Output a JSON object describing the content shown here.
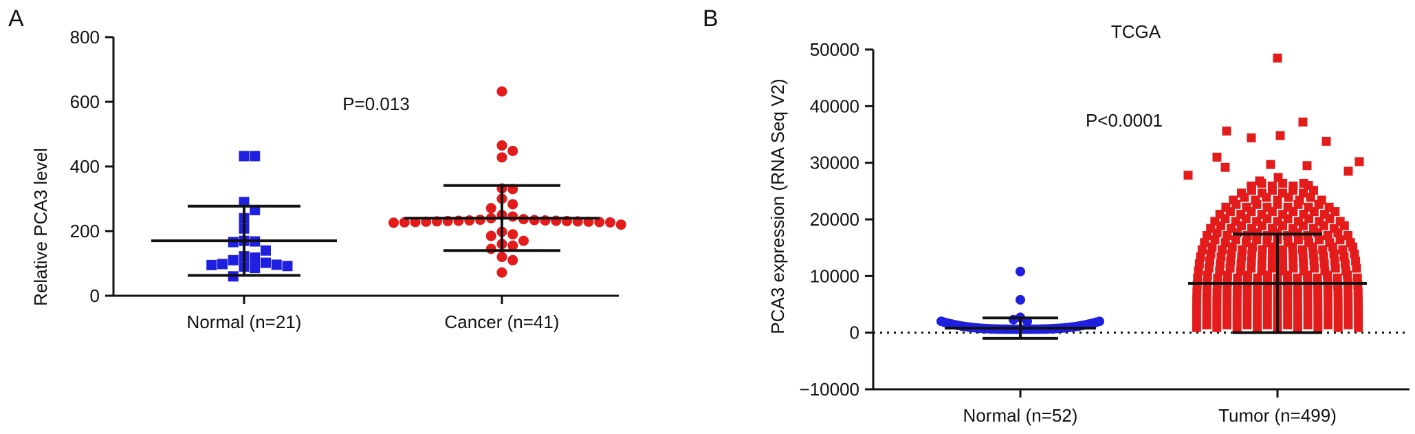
{
  "chart_data": [
    {
      "panel_label": "A",
      "type": "scatter",
      "ylabel": "Relative PCA3 level",
      "ylim": [
        0,
        800
      ],
      "yticks": [
        "0",
        "200",
        "400",
        "600",
        "800"
      ],
      "categories": [
        "Normal (n=21)",
        "Cancer (n=41)"
      ],
      "annotation": "P=0.013",
      "colors": {
        "Normal (n=21)": "#1f1fe0",
        "Cancer (n=41)": "#e31b1b"
      },
      "markers": {
        "Normal (n=21)": "square",
        "Cancer (n=41)": "circle"
      },
      "groups": [
        {
          "category": "Normal (n=21)",
          "mean": 170,
          "sd_upper": 277,
          "sd_lower": 63,
          "values": [
            432,
            432,
            290,
            265,
            240,
            208,
            170,
            168,
            166,
            140,
            122,
            118,
            110,
            102,
            98,
            96,
            95,
            92,
            90,
            86,
            60
          ]
        },
        {
          "category": "Cancer (n=41)",
          "mean": 240,
          "sd_upper": 341,
          "sd_lower": 140,
          "values": [
            632,
            465,
            448,
            428,
            332,
            330,
            300,
            283,
            271,
            250,
            245,
            240,
            237,
            235,
            234,
            233,
            233,
            232,
            232,
            231,
            231,
            230,
            230,
            229,
            229,
            228,
            228,
            227,
            227,
            226,
            220,
            198,
            190,
            185,
            170,
            160,
            155,
            145,
            120,
            110,
            72
          ]
        }
      ]
    },
    {
      "panel_label": "B",
      "type": "scatter",
      "title": "TCGA",
      "ylabel": "PCA3 expression (RNA Seq V2)",
      "ylim": [
        -10000,
        50000
      ],
      "yticks": [
        "-10000",
        "0",
        "10000",
        "20000",
        "30000",
        "40000",
        "50000"
      ],
      "categories": [
        "Normal (n=52)",
        "Tumor (n=499)"
      ],
      "annotation": "P<0.0001",
      "reference_line": 0,
      "colors": {
        "Normal (n=52)": "#1f1fe0",
        "Tumor (n=499)": "#e31b1b"
      },
      "markers": {
        "Normal (n=52)": "circle",
        "Tumor (n=499)": "square"
      },
      "groups": [
        {
          "category": "Normal (n=52)",
          "mean": 800,
          "sd_upper": 2600,
          "sd_lower": -1000,
          "n": 52,
          "outliers": [
            10800,
            5800,
            2700,
            2300,
            2000
          ]
        },
        {
          "category": "Tumor (n=499)",
          "mean": 8700,
          "sd_upper": 17400,
          "sd_lower": 0,
          "n": 499,
          "outliers": [
            48500,
            37200,
            35600,
            34800,
            34400,
            33800,
            31000,
            30200,
            29700,
            29500,
            29200,
            28500,
            27800,
            27400,
            26800,
            26000
          ]
        }
      ]
    }
  ]
}
